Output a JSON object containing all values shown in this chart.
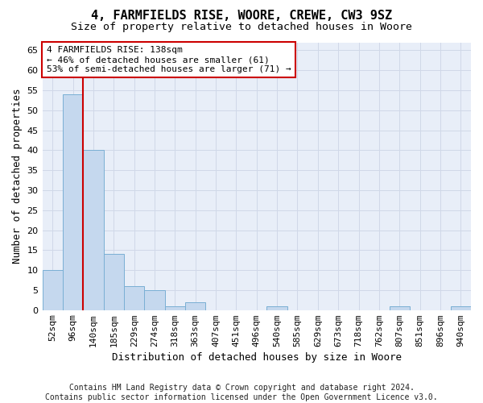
{
  "title": "4, FARMFIELDS RISE, WOORE, CREWE, CW3 9SZ",
  "subtitle": "Size of property relative to detached houses in Woore",
  "xlabel": "Distribution of detached houses by size in Woore",
  "ylabel": "Number of detached properties",
  "bar_labels": [
    "52sqm",
    "96sqm",
    "140sqm",
    "185sqm",
    "229sqm",
    "274sqm",
    "318sqm",
    "363sqm",
    "407sqm",
    "451sqm",
    "496sqm",
    "540sqm",
    "585sqm",
    "629sqm",
    "673sqm",
    "718sqm",
    "762sqm",
    "807sqm",
    "851sqm",
    "896sqm",
    "940sqm"
  ],
  "bar_values": [
    10,
    54,
    40,
    14,
    6,
    5,
    1,
    2,
    0,
    0,
    0,
    1,
    0,
    0,
    0,
    0,
    0,
    1,
    0,
    0,
    1
  ],
  "bar_color": "#c5d8ee",
  "bar_edge_color": "#7aafd4",
  "vline_x_index": 2,
  "vline_color": "#cc0000",
  "annotation_text": "4 FARMFIELDS RISE: 138sqm\n← 46% of detached houses are smaller (61)\n53% of semi-detached houses are larger (71) →",
  "annotation_box_color": "#cc0000",
  "ylim": [
    0,
    67
  ],
  "yticks": [
    0,
    5,
    10,
    15,
    20,
    25,
    30,
    35,
    40,
    45,
    50,
    55,
    60,
    65
  ],
  "grid_color": "#d0d8e8",
  "background_color": "#e8eef8",
  "footer": "Contains HM Land Registry data © Crown copyright and database right 2024.\nContains public sector information licensed under the Open Government Licence v3.0.",
  "title_fontsize": 11,
  "subtitle_fontsize": 9.5,
  "annotation_fontsize": 8,
  "tick_fontsize": 8,
  "ylabel_fontsize": 9,
  "xlabel_fontsize": 9,
  "footer_fontsize": 7
}
